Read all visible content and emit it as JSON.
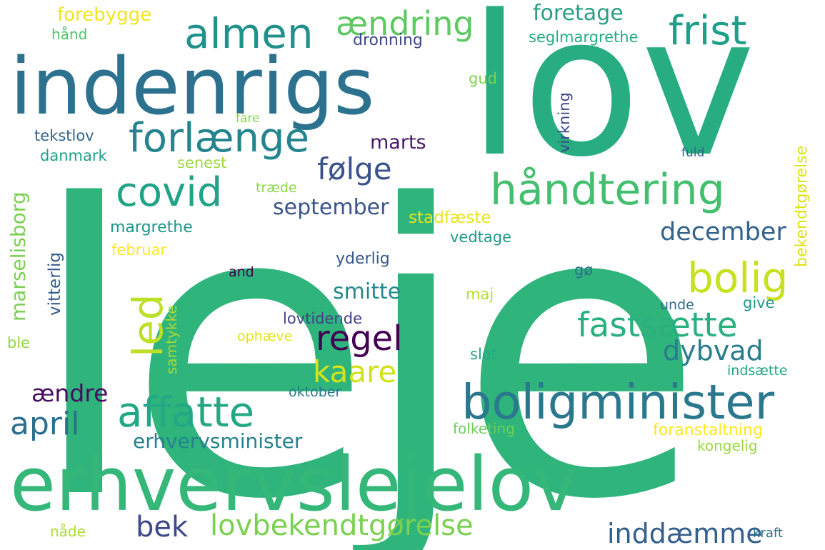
{
  "words": [
    {
      "text": "leje",
      "color": "#2fb47c"
    },
    {
      "text": "lov",
      "color": "#27ad81"
    },
    {
      "text": "indenrigs",
      "color": "#2c728e"
    },
    {
      "text": "erhvervslejelov",
      "color": "#35b779"
    },
    {
      "text": "boligminister",
      "color": "#2a788e"
    },
    {
      "text": "håndtering",
      "color": "#44bf70"
    },
    {
      "text": "almen",
      "color": "#21918c"
    },
    {
      "text": "frist",
      "color": "#1f9e89"
    },
    {
      "text": "ændring",
      "color": "#5ec962"
    },
    {
      "text": "forlænge",
      "color": "#25848e"
    },
    {
      "text": "covid",
      "color": "#20a386"
    },
    {
      "text": "affatte",
      "color": "#22a884"
    },
    {
      "text": "bolig",
      "color": "#c8e020"
    },
    {
      "text": "led",
      "color": "#bddf26"
    },
    {
      "text": "følge",
      "color": "#3b528b"
    },
    {
      "text": "regel",
      "color": "#440154"
    },
    {
      "text": "fastsætte",
      "color": "#2ab07f"
    },
    {
      "text": "dybvad",
      "color": "#287c8e"
    },
    {
      "text": "kaare",
      "color": "#d2e21b"
    },
    {
      "text": "april",
      "color": "#2d708e"
    },
    {
      "text": "december",
      "color": "#33638d"
    },
    {
      "text": "september",
      "color": "#39558c"
    },
    {
      "text": "marts",
      "color": "#481a6c"
    },
    {
      "text": "smitte",
      "color": "#23898e"
    },
    {
      "text": "lovbekendtgørelse",
      "color": "#7ad151"
    },
    {
      "text": "bek",
      "color": "#3e4989"
    },
    {
      "text": "inddæmme",
      "color": "#355f8d"
    },
    {
      "text": "ændre",
      "color": "#470e61"
    },
    {
      "text": "erhvervsminister",
      "color": "#26828e"
    },
    {
      "text": "foretage",
      "color": "#2a9f86"
    },
    {
      "text": "forebygge",
      "color": "#f1e51d"
    },
    {
      "text": "hånd",
      "color": "#4ec36b"
    },
    {
      "text": "dronning",
      "color": "#3e4a89"
    },
    {
      "text": "seglmargrethe",
      "color": "#25ac82"
    },
    {
      "text": "gud",
      "color": "#7fd34e"
    },
    {
      "text": "fare",
      "color": "#86d549"
    },
    {
      "text": "tekstlov",
      "color": "#32648e"
    },
    {
      "text": "danmark",
      "color": "#1fa088"
    },
    {
      "text": "senest",
      "color": "#9dd93b"
    },
    {
      "text": "træde",
      "color": "#8bd646"
    },
    {
      "text": "stadfæste",
      "color": "#e8e419"
    },
    {
      "text": "margrethe",
      "color": "#1f968b"
    },
    {
      "text": "vedtage",
      "color": "#1f9a8a"
    },
    {
      "text": "februar",
      "color": "#fde725"
    },
    {
      "text": "yderlig",
      "color": "#38588c"
    },
    {
      "text": "and",
      "color": "#440154"
    },
    {
      "text": "gø",
      "color": "#2d718e"
    },
    {
      "text": "maj",
      "color": "#b5de2b"
    },
    {
      "text": "lovtidende",
      "color": "#424086"
    },
    {
      "text": "unde",
      "color": "#2e6e8e"
    },
    {
      "text": "give",
      "color": "#1f998a"
    },
    {
      "text": "ophæve",
      "color": "#e2e418"
    },
    {
      "text": "slot",
      "color": "#22a785"
    },
    {
      "text": "ble",
      "color": "#90d743"
    },
    {
      "text": "indsætte",
      "color": "#21a685"
    },
    {
      "text": "oktober",
      "color": "#29798e"
    },
    {
      "text": "folketing",
      "color": "#6ece58"
    },
    {
      "text": "foranstaltning",
      "color": "#fde725"
    },
    {
      "text": "kongelig",
      "color": "#98d83e"
    },
    {
      "text": "nåde",
      "color": "#addc30"
    },
    {
      "text": "kraft",
      "color": "#2c718e"
    },
    {
      "text": "fuld",
      "color": "#31668e"
    },
    {
      "text": "marselisborg",
      "color": "#7ad151"
    },
    {
      "text": "vitterlig",
      "color": "#365c8d"
    },
    {
      "text": "samtykke",
      "color": "#a8db34"
    },
    {
      "text": "virkning",
      "color": "#3f4788"
    },
    {
      "text": "bekendtgørelse",
      "color": "#dde318"
    }
  ]
}
